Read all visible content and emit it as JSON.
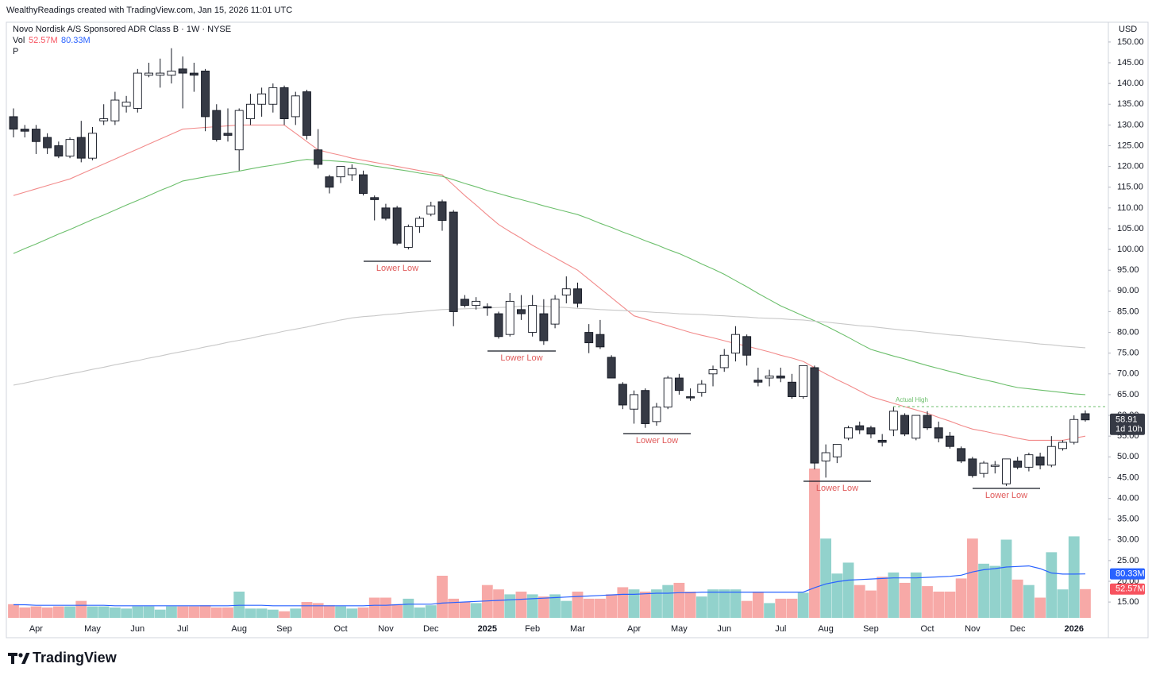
{
  "chart_data": {
    "type": "candlestick",
    "header": "WealthyReadings created with TradingView.com, Jan 15, 2026 11:01 UTC",
    "title": "Novo Nordisk A/S Sponsored ADR Class B · 1W · NYSE",
    "indicator_label": "P",
    "currency": "USD",
    "logo": "TradingView",
    "categories": [
      null,
      null,
      "Apr",
      null,
      null,
      null,
      null,
      "May",
      null,
      null,
      null,
      "Jun",
      null,
      null,
      null,
      "Jul",
      null,
      null,
      null,
      null,
      "Aug",
      null,
      null,
      null,
      "Sep",
      null,
      null,
      null,
      null,
      "Oct",
      null,
      null,
      null,
      "Nov",
      null,
      null,
      null,
      "Dec",
      null,
      null,
      null,
      null,
      "2025",
      null,
      null,
      null,
      "Feb",
      null,
      null,
      null,
      "Mar",
      null,
      null,
      null,
      null,
      "Apr",
      null,
      null,
      null,
      "May",
      null,
      null,
      null,
      "Jun",
      null,
      null,
      null,
      null,
      "Jul",
      null,
      null,
      null,
      "Aug",
      null,
      null,
      null,
      "Sep",
      null,
      null,
      null,
      null,
      "Oct",
      null,
      null,
      null,
      "Nov",
      null,
      null,
      null,
      "Dec",
      null,
      null,
      null,
      null,
      "2026",
      null
    ],
    "open": [
      132,
      129,
      129,
      127,
      125,
      122.5,
      127,
      122,
      131,
      131,
      134.5,
      134,
      142,
      142,
      142,
      143.5,
      142.5,
      143,
      133.5,
      128,
      124,
      131.5,
      135,
      135,
      139,
      132,
      138,
      124,
      117.5,
      117.5,
      118,
      118,
      112.5,
      110,
      110,
      100.5,
      105.5,
      108.5,
      111.5,
      109,
      88,
      86.5,
      86.2,
      84.5,
      79.5,
      85.5,
      80,
      84.5,
      82,
      89,
      90.5,
      80,
      79.5,
      74,
      67.5,
      61.5,
      66,
      58.5,
      62,
      69,
      64.5,
      65.5,
      70,
      71.5,
      75,
      79,
      68.5,
      69,
      69.5,
      68,
      64.5,
      71.5,
      49,
      50,
      54.5,
      57.5,
      57,
      54,
      56.5,
      60,
      54.5,
      60,
      57,
      55,
      52,
      49.5,
      46,
      47.7,
      43.5,
      49,
      47.5,
      50,
      48,
      52,
      53.5,
      60.4
    ],
    "high": [
      134,
      130,
      130,
      128,
      126,
      127,
      131,
      129.5,
      135,
      138,
      137,
      143.5,
      145,
      146,
      148.5,
      146.5,
      145,
      143.5,
      135,
      134,
      134,
      137.5,
      139,
      140,
      139.5,
      138,
      138.5,
      129,
      118,
      120,
      120.5,
      119,
      113,
      111,
      110.5,
      106,
      108,
      111.5,
      112,
      109.5,
      89,
      88.5,
      87,
      85,
      89.5,
      89,
      89,
      88,
      89,
      93.5,
      92,
      82,
      83,
      74.5,
      68,
      66,
      66.5,
      63,
      69.5,
      70,
      66.5,
      68.5,
      72,
      76,
      81.5,
      79.5,
      71.5,
      71,
      71.5,
      70,
      72,
      72,
      53,
      53,
      57.5,
      58.5,
      57.5,
      55.5,
      62,
      60.5,
      60,
      61,
      58.5,
      56,
      52.5,
      50,
      49,
      49,
      49.5,
      50,
      51,
      51,
      55,
      54,
      60,
      61.2
    ],
    "low": [
      127,
      127,
      123,
      123,
      122,
      122,
      121,
      121.5,
      130,
      130,
      133,
      133,
      141.5,
      139,
      140,
      134,
      138,
      128.5,
      126,
      126,
      119,
      130,
      132,
      133,
      130,
      130,
      126.5,
      119.5,
      113.5,
      116,
      116.5,
      113,
      107,
      107,
      101,
      100,
      104,
      108,
      104.5,
      81.5,
      86,
      85.5,
      84,
      78.5,
      79,
      83,
      79,
      77,
      81,
      87,
      86,
      75,
      76,
      69,
      61.5,
      58,
      57,
      57.5,
      61.5,
      65,
      63.5,
      64.5,
      67,
      70.5,
      73,
      72,
      67,
      67,
      68,
      64,
      64,
      47,
      45,
      48.5,
      54,
      55.5,
      54.5,
      52.5,
      55,
      55,
      54,
      56.5,
      53.5,
      52,
      48.5,
      45,
      45,
      46,
      43,
      47,
      46.5,
      47,
      47.5,
      51.5,
      53,
      58.5
    ],
    "close": [
      129,
      128.5,
      126,
      124.5,
      122.5,
      126.5,
      122,
      128,
      131.5,
      136,
      135.5,
      142.5,
      142.5,
      142.5,
      143,
      142.5,
      142,
      132,
      126.5,
      127.5,
      133.5,
      135,
      137.5,
      139,
      131.5,
      137,
      127.5,
      120.5,
      115,
      120,
      119.5,
      113.5,
      112,
      107.5,
      101.5,
      105.5,
      107.5,
      110.5,
      107,
      85,
      86.5,
      87.5,
      85.9,
      79,
      87.5,
      84.5,
      86.5,
      78,
      88,
      90.5,
      87,
      77.5,
      76.5,
      69,
      62.5,
      65,
      58,
      62,
      69,
      66,
      64.2,
      67.5,
      71,
      74.5,
      79.5,
      74.5,
      68,
      69.5,
      69,
      64.5,
      72,
      48.5,
      51,
      53,
      57,
      56.5,
      55.5,
      53.5,
      61,
      55.5,
      60,
      57,
      54.5,
      52.5,
      49,
      45.5,
      48.5,
      48,
      49.5,
      47.5,
      50.5,
      48,
      52.5,
      53.5,
      59,
      58.91
    ],
    "up_color": "#ffffff",
    "down_color": "#363a45",
    "moving_averages": [
      {
        "color": "#f28b8b",
        "values": [
          113,
          113.8,
          114.6,
          115.4,
          116.2,
          117,
          118.2,
          119.4,
          120.6,
          121.8,
          123,
          124.2,
          125.4,
          126.6,
          127.8,
          129,
          129.2,
          129.4,
          129.6,
          129.8,
          130,
          130,
          130,
          130,
          130,
          128,
          126,
          124,
          123.3,
          122.7,
          122,
          121.5,
          121,
          120.5,
          120,
          119.5,
          119,
          118.5,
          118,
          115.5,
          113,
          110.7,
          108.3,
          106,
          104.3,
          102.7,
          101,
          99.5,
          98,
          96.5,
          95,
          92.8,
          90.6,
          88.4,
          86.2,
          84,
          83.2,
          82.4,
          81.6,
          80.8,
          80,
          79.3,
          78.7,
          78,
          77.3,
          76.7,
          76,
          75.3,
          74.5,
          73.8,
          73,
          71.5,
          70,
          68.6,
          67.3,
          65.9,
          64.5,
          63.7,
          62.9,
          62.1,
          61.3,
          60.5,
          59.5,
          58.6,
          57.6,
          56.7,
          56.2,
          55.6,
          55.1,
          54.5,
          54,
          54,
          54,
          54,
          54.5,
          55
        ]
      },
      {
        "color": "#6cbf6c",
        "values": [
          99,
          100.2,
          101.3,
          102.5,
          103.7,
          104.8,
          106,
          107.2,
          108.3,
          109.5,
          110.7,
          111.8,
          113,
          114.2,
          115.3,
          116.5,
          117,
          117.5,
          118,
          118.4,
          118.9,
          119.4,
          119.9,
          120.3,
          120.8,
          121.3,
          121.7,
          121.5,
          121.4,
          121.2,
          121,
          120.6,
          120.1,
          119.7,
          119.3,
          118.9,
          118.4,
          118,
          117.6,
          116.8,
          115.9,
          115.1,
          114.2,
          113.5,
          112.7,
          112,
          111.3,
          110.5,
          109.8,
          109.1,
          108.4,
          107.4,
          106.3,
          105.3,
          104.2,
          103.2,
          102.1,
          101.1,
          100,
          99,
          97.8,
          96.5,
          95.3,
          94,
          92.5,
          91,
          89.4,
          87.9,
          86.4,
          85.2,
          84,
          82.8,
          81.6,
          80.2,
          78.8,
          77.3,
          75.9,
          75.1,
          74.3,
          73.6,
          72.8,
          72,
          71.3,
          70.6,
          69.9,
          69.2,
          68.6,
          68,
          67.3,
          66.7,
          66.4,
          66.1,
          65.8,
          65.5,
          65.2,
          65
        ]
      },
      {
        "color": "#c8c8c8",
        "values": [
          67.3,
          67.8,
          68.4,
          68.9,
          69.5,
          70,
          70.5,
          71.1,
          71.6,
          72.2,
          72.7,
          73.2,
          73.8,
          74.3,
          74.9,
          75.4,
          75.9,
          76.5,
          77,
          77.6,
          78.1,
          78.6,
          79.2,
          79.7,
          80.3,
          80.8,
          81.3,
          81.9,
          82.4,
          83,
          83.5,
          83.8,
          84,
          84.3,
          84.5,
          84.8,
          85,
          85.3,
          85.5,
          85.6,
          85.7,
          85.8,
          85.9,
          86,
          86.1,
          86.3,
          86.4,
          86.3,
          86.1,
          86,
          85.8,
          85.7,
          85.5,
          85.4,
          85.3,
          85.1,
          85,
          84.8,
          84.7,
          84.5,
          84.4,
          84.3,
          84.1,
          84,
          83.8,
          83.7,
          83.5,
          83.4,
          83.3,
          83.1,
          83,
          82.7,
          82.5,
          82.2,
          81.9,
          81.6,
          81.4,
          81.1,
          80.8,
          80.5,
          80.3,
          80,
          79.7,
          79.4,
          79.2,
          78.9,
          78.6,
          78.3,
          78.1,
          77.8,
          77.5,
          77.2,
          77,
          76.7,
          76.5,
          76.3
        ]
      }
    ],
    "volume": {
      "name": "Vol",
      "up_color": "#92d2cc",
      "down_color": "#f7a9a7",
      "label_color": "#f7525f",
      "values": [
        25,
        19,
        21,
        19,
        21,
        21,
        31,
        21,
        21,
        19,
        17,
        21,
        21,
        15,
        21,
        21,
        21,
        23,
        19,
        19,
        48,
        17,
        17,
        15,
        12,
        17,
        29,
        27,
        23,
        21,
        17,
        19,
        37,
        37,
        25,
        35,
        19,
        23,
        77,
        35,
        29,
        27,
        60,
        52,
        43,
        48,
        43,
        39,
        43,
        31,
        48,
        35,
        35,
        43,
        56,
        52,
        48,
        52,
        60,
        64,
        48,
        39,
        52,
        52,
        52,
        31,
        48,
        27,
        35,
        35,
        46,
        273,
        145,
        81,
        101,
        60,
        50,
        75,
        83,
        64,
        83,
        58,
        48,
        48,
        72,
        145,
        99,
        95,
        143,
        70,
        60,
        37,
        120,
        52,
        149,
        52.57
      ],
      "value_labels": [
        null,
        null,
        null,
        null,
        null,
        null,
        null,
        null,
        null,
        null,
        null,
        null,
        null,
        null,
        null,
        null,
        null,
        null,
        null,
        null,
        null,
        null,
        null,
        null,
        null,
        null,
        null,
        null,
        null,
        null,
        null,
        null,
        null,
        null,
        null,
        null,
        null,
        null,
        null,
        null,
        null,
        null,
        null,
        null,
        null,
        null,
        null,
        null,
        null,
        null,
        null,
        null,
        null,
        null,
        null,
        null,
        null,
        null,
        null,
        null,
        null,
        null,
        null,
        null,
        null,
        null,
        null,
        null,
        null,
        null,
        null,
        null,
        null,
        null,
        null,
        null,
        null,
        null,
        null,
        null,
        null,
        null,
        null,
        null,
        null,
        null,
        null,
        null,
        null,
        null,
        null,
        null,
        null,
        null,
        null,
        "52.57M"
      ]
    },
    "volume_ma": {
      "color": "#2962ff",
      "values": [
        24,
        24,
        23,
        23,
        23,
        23,
        23,
        23,
        23,
        22,
        22,
        22,
        22,
        22,
        22,
        22,
        22,
        22,
        22,
        22,
        23,
        23,
        23,
        22,
        22,
        22,
        22,
        22,
        22,
        22,
        22,
        22,
        23,
        23,
        24,
        25,
        25,
        25,
        27,
        28,
        29,
        30,
        31,
        32,
        33,
        34,
        35,
        36,
        37,
        38,
        39,
        40,
        41,
        42,
        43,
        43,
        44,
        45,
        45,
        46,
        46,
        47,
        47,
        47,
        47,
        47,
        47,
        47,
        47,
        47,
        47,
        55,
        62,
        66,
        69,
        70,
        71,
        72,
        73,
        73,
        73,
        74,
        75,
        76,
        78,
        84,
        88,
        90,
        93,
        94,
        95,
        90,
        82,
        80,
        80,
        80.33
      ],
      "value_labels": [
        null,
        null,
        null,
        null,
        null,
        null,
        null,
        null,
        null,
        null,
        null,
        null,
        null,
        null,
        null,
        null,
        null,
        null,
        null,
        null,
        null,
        null,
        null,
        null,
        null,
        null,
        null,
        null,
        null,
        null,
        null,
        null,
        null,
        null,
        null,
        null,
        null,
        null,
        null,
        null,
        null,
        null,
        null,
        null,
        null,
        null,
        null,
        null,
        null,
        null,
        null,
        null,
        null,
        null,
        null,
        null,
        null,
        null,
        null,
        null,
        null,
        null,
        null,
        null,
        null,
        null,
        null,
        null,
        null,
        null,
        null,
        null,
        null,
        null,
        null,
        null,
        null,
        null,
        null,
        null,
        null,
        null,
        null,
        null,
        null,
        null,
        null,
        null,
        null,
        null,
        null,
        null,
        null,
        null,
        null,
        "80.33M"
      ]
    },
    "countdown": "1d 10h",
    "annotations": [
      "Lower Low",
      "Lower Low",
      "Lower Low",
      "Lower Low",
      "Lower Low"
    ],
    "annotation_color": "#e05b5b",
    "reference_line": {
      "label": "Actual High",
      "color": "#6cbf6c"
    },
    "ylim": [
      11,
      154
    ],
    "yticks": [
      {
        "value": 15,
        "label": "15.00"
      },
      {
        "value": 20,
        "label": "20.00"
      },
      {
        "value": 25,
        "label": "25.00"
      },
      {
        "value": 30,
        "label": "30.00"
      },
      {
        "value": 35,
        "label": "35.00"
      },
      {
        "value": 40,
        "label": "40.00"
      },
      {
        "value": 45,
        "label": "45.00"
      },
      {
        "value": 50,
        "label": "50.00"
      },
      {
        "value": 55,
        "label": "55.00"
      },
      {
        "value": 60,
        "label": "60.00"
      },
      {
        "value": 65,
        "label": "65.00"
      },
      {
        "value": 70,
        "label": "70.00"
      },
      {
        "value": 75,
        "label": "75.00"
      },
      {
        "value": 80,
        "label": "80.00"
      },
      {
        "value": 85,
        "label": "85.00"
      },
      {
        "value": 90,
        "label": "90.00"
      },
      {
        "value": 95,
        "label": "95.00"
      },
      {
        "value": 100,
        "label": "100.00"
      },
      {
        "value": 105,
        "label": "105.00"
      },
      {
        "value": 110,
        "label": "110.00"
      },
      {
        "value": 115,
        "label": "115.00"
      },
      {
        "value": 120,
        "label": "120.00"
      },
      {
        "value": 125,
        "label": "125.00"
      },
      {
        "value": 130,
        "label": "130.00"
      },
      {
        "value": 135,
        "label": "135.00"
      },
      {
        "value": 140,
        "label": "140.00"
      },
      {
        "value": 145,
        "label": "145.00"
      },
      {
        "value": 150,
        "label": "150.00"
      }
    ],
    "grid": false
  }
}
